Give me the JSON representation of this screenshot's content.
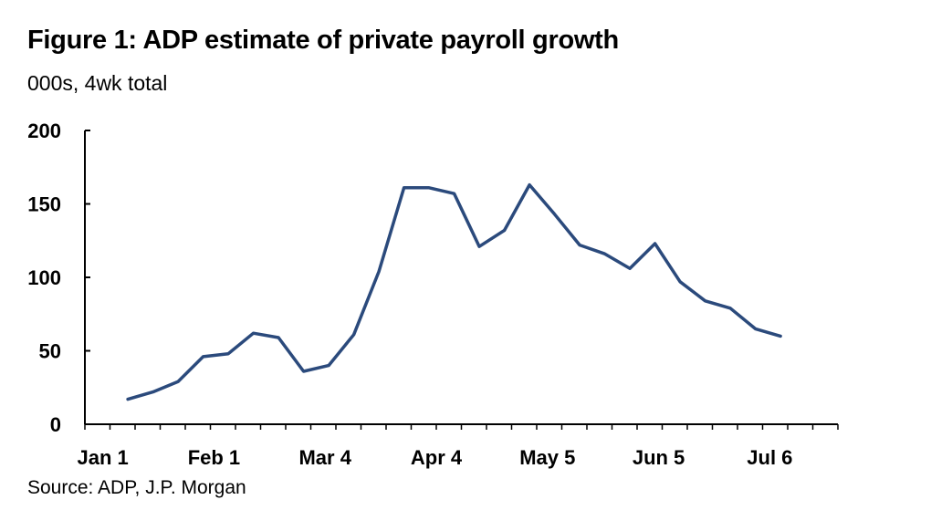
{
  "title": "Figure 1: ADP estimate of private payroll growth",
  "subtitle": "000s, 4wk total",
  "source": "Source: ADP, J.P. Morgan",
  "colors": {
    "line": "#2b4a7c",
    "axis": "#000000"
  },
  "chart_data": {
    "type": "line",
    "title": "Figure 1: ADP estimate of private payroll growth",
    "ylabel": "000s, 4wk total",
    "xlabel": "",
    "ylim": [
      0,
      200
    ],
    "yticks": [
      0,
      50,
      100,
      150,
      200
    ],
    "xlim": [
      "2025-12-27",
      "2026-07-25"
    ],
    "xticks": [
      {
        "label": "Jan 1",
        "date": "2026-01-01"
      },
      {
        "label": "Feb 1",
        "date": "2026-02-01"
      },
      {
        "label": "Mar 4",
        "date": "2026-03-04"
      },
      {
        "label": "Apr 4",
        "date": "2026-04-04"
      },
      {
        "label": "May 5",
        "date": "2026-05-05"
      },
      {
        "label": "Jun 5",
        "date": "2026-06-05"
      },
      {
        "label": "Jul 6",
        "date": "2026-07-06"
      }
    ],
    "grid": false,
    "series": [
      {
        "x": [
          "2026-01-08",
          "2026-01-15",
          "2026-01-22",
          "2026-01-29",
          "2026-02-05",
          "2026-02-12",
          "2026-02-19",
          "2026-02-26",
          "2026-03-05",
          "2026-03-12",
          "2026-03-19",
          "2026-03-26",
          "2026-04-02",
          "2026-04-09",
          "2026-04-16",
          "2026-04-23",
          "2026-04-30",
          "2026-05-07",
          "2026-05-14",
          "2026-05-21",
          "2026-05-28",
          "2026-06-04",
          "2026-06-11",
          "2026-06-18",
          "2026-06-25",
          "2026-07-02",
          "2026-07-09"
        ],
        "values": [
          17,
          22,
          29,
          46,
          48,
          62,
          59,
          36,
          40,
          61,
          104,
          161,
          161,
          157,
          121,
          132,
          163,
          143,
          122,
          116,
          106,
          123,
          97,
          84,
          79,
          65,
          60
        ]
      }
    ]
  }
}
